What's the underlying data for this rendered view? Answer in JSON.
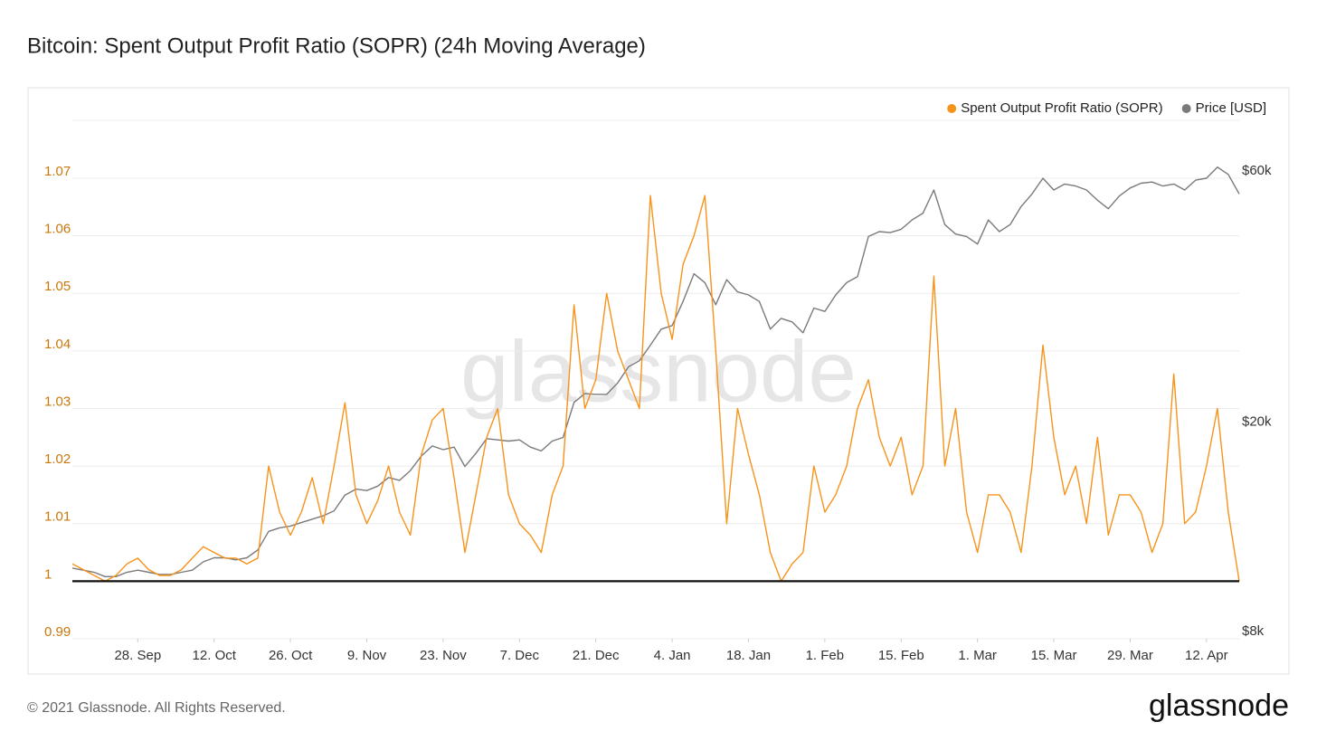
{
  "chart_data": {
    "type": "line",
    "title": "Bitcoin: Spent Output Profit Ratio (SOPR) (24h Moving Average)",
    "watermark": "glassnode",
    "footer": "© 2021 Glassnode. All Rights Reserved.",
    "logo": "glassnode",
    "x": [
      "16. Sep",
      "18. Sep",
      "20. Sep",
      "22. Sep",
      "24. Sep",
      "26. Sep",
      "28. Sep",
      "30. Sep",
      "2. Oct",
      "4. Oct",
      "6. Oct",
      "8. Oct",
      "10. Oct",
      "12. Oct",
      "14. Oct",
      "16. Oct",
      "18. Oct",
      "20. Oct",
      "22. Oct",
      "24. Oct",
      "26. Oct",
      "28. Oct",
      "30. Oct",
      "1. Nov",
      "3. Nov",
      "5. Nov",
      "7. Nov",
      "9. Nov",
      "11. Nov",
      "13. Nov",
      "15. Nov",
      "17. Nov",
      "19. Nov",
      "21. Nov",
      "23. Nov",
      "25. Nov",
      "27. Nov",
      "29. Nov",
      "1. Dec",
      "3. Dec",
      "5. Dec",
      "7. Dec",
      "9. Dec",
      "11. Dec",
      "13. Dec",
      "15. Dec",
      "17. Dec",
      "19. Dec",
      "21. Dec",
      "23. Dec",
      "25. Dec",
      "27. Dec",
      "29. Dec",
      "31. Dec",
      "2. Jan",
      "4. Jan",
      "6. Jan",
      "8. Jan",
      "10. Jan",
      "12. Jan",
      "14. Jan",
      "16. Jan",
      "18. Jan",
      "20. Jan",
      "22. Jan",
      "24. Jan",
      "26. Jan",
      "28. Jan",
      "30. Jan",
      "1. Feb",
      "3. Feb",
      "5. Feb",
      "7. Feb",
      "9. Feb",
      "11. Feb",
      "13. Feb",
      "15. Feb",
      "17. Feb",
      "19. Feb",
      "21. Feb",
      "23. Feb",
      "25. Feb",
      "27. Feb",
      "1. Mar",
      "3. Mar",
      "5. Mar",
      "7. Mar",
      "9. Mar",
      "11. Mar",
      "13. Mar",
      "15. Mar",
      "17. Mar",
      "19. Mar",
      "21. Mar",
      "23. Mar",
      "25. Mar",
      "27. Mar",
      "29. Mar",
      "31. Mar",
      "2. Apr",
      "4. Apr",
      "6. Apr",
      "8. Apr",
      "10. Apr",
      "12. Apr",
      "14. Apr",
      "16. Apr",
      "18. Apr"
    ],
    "xticks": [
      "28. Sep",
      "12. Oct",
      "26. Oct",
      "9. Nov",
      "23. Nov",
      "7. Dec",
      "21. Dec",
      "4. Jan",
      "18. Jan",
      "1. Feb",
      "15. Feb",
      "1. Mar",
      "15. Mar",
      "29. Mar",
      "12. Apr"
    ],
    "series": [
      {
        "name": "Price [USD]",
        "color": "#7a7a7a",
        "axis": "y2",
        "values": [
          10900,
          10800,
          10700,
          10500,
          10500,
          10700,
          10800,
          10700,
          10600,
          10600,
          10700,
          10800,
          11200,
          11400,
          11400,
          11300,
          11400,
          11800,
          12800,
          13000,
          13100,
          13300,
          13500,
          13700,
          14000,
          15000,
          15400,
          15300,
          15600,
          16200,
          16000,
          16700,
          17800,
          18600,
          18300,
          18500,
          17000,
          18000,
          19200,
          19100,
          19000,
          19100,
          18500,
          18200,
          19000,
          19300,
          22500,
          23400,
          23300,
          23300,
          24500,
          26300,
          27000,
          28900,
          31000,
          31500,
          35000,
          39500,
          38000,
          34500,
          38500,
          36500,
          36000,
          35000,
          31000,
          32500,
          32000,
          30500,
          34000,
          33500,
          36000,
          38000,
          39000,
          46500,
          47500,
          47300,
          48000,
          50000,
          51500,
          57000,
          49000,
          47000,
          46500,
          45000,
          50000,
          47500,
          49000,
          53000,
          56000,
          60000,
          57000,
          58500,
          58000,
          57000,
          54500,
          52500,
          55500,
          57500,
          58700,
          59000,
          58000,
          58500,
          57000,
          59500,
          60000,
          63000,
          61000,
          56000
        ]
      },
      {
        "name": "Spent Output Profit Ratio (SOPR)",
        "color": "#f7931a",
        "values": [
          1.003,
          1.002,
          1.001,
          1.0,
          1.001,
          1.003,
          1.004,
          1.002,
          1.001,
          1.001,
          1.002,
          1.004,
          1.006,
          1.005,
          1.004,
          1.004,
          1.003,
          1.004,
          1.02,
          1.012,
          1.008,
          1.012,
          1.018,
          1.01,
          1.02,
          1.031,
          1.015,
          1.01,
          1.014,
          1.02,
          1.012,
          1.008,
          1.022,
          1.028,
          1.03,
          1.018,
          1.005,
          1.015,
          1.025,
          1.03,
          1.015,
          1.01,
          1.008,
          1.005,
          1.015,
          1.02,
          1.048,
          1.03,
          1.035,
          1.05,
          1.04,
          1.035,
          1.03,
          1.067,
          1.05,
          1.042,
          1.055,
          1.06,
          1.067,
          1.04,
          1.01,
          1.03,
          1.022,
          1.015,
          1.005,
          1.0,
          1.003,
          1.005,
          1.02,
          1.012,
          1.015,
          1.02,
          1.03,
          1.035,
          1.025,
          1.02,
          1.025,
          1.015,
          1.02,
          1.053,
          1.02,
          1.03,
          1.012,
          1.005,
          1.015,
          1.015,
          1.012,
          1.005,
          1.02,
          1.041,
          1.025,
          1.015,
          1.02,
          1.01,
          1.025,
          1.008,
          1.015,
          1.015,
          1.012,
          1.005,
          1.01,
          1.036,
          1.01,
          1.012,
          1.02,
          1.03,
          1.012,
          1.0
        ]
      }
    ],
    "legend_order": [
      "Spent Output Profit Ratio (SOPR)",
      "Price [USD]"
    ],
    "ylim": [
      0.99,
      1.07
    ],
    "yticks": [
      0.99,
      1,
      1.01,
      1.02,
      1.03,
      1.04,
      1.05,
      1.06,
      1.07
    ],
    "y2lim": [
      8000,
      60000
    ],
    "y2scale": "log",
    "y2ticks": [
      {
        "value": 8000,
        "label": "$8k"
      },
      {
        "value": 20000,
        "label": "$20k"
      },
      {
        "value": 60000,
        "label": "$60k"
      }
    ],
    "baseline": 1,
    "grid": true,
    "legend": "top-right"
  }
}
